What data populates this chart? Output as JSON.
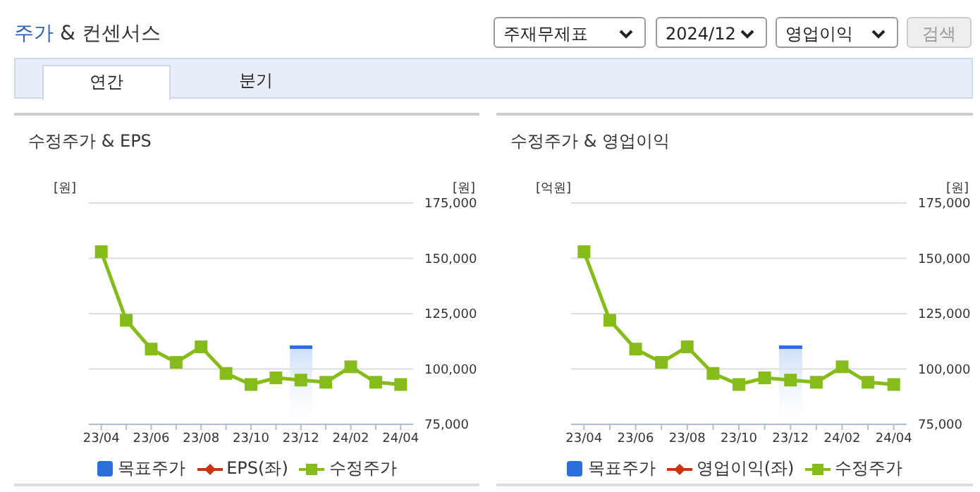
{
  "chart_data": [
    {
      "type": "other",
      "title": "주가 & 컨센서스",
      "annotations": [
        "주재무제표",
        "2024/12",
        "영업이익",
        "검색",
        "연간",
        "분기"
      ]
    },
    {
      "type": "line",
      "title": "수정주가 & EPS",
      "ylabel": "[원]",
      "y2label": "[원]",
      "categories": [
        "23/04",
        null,
        "23/06",
        null,
        "23/08",
        null,
        "23/10",
        null,
        "23/12",
        null,
        "24/02",
        null,
        "24/04"
      ],
      "y2lim": [
        75000,
        175000
      ],
      "y2ticks": [
        {
          "value": 75000,
          "label": "75,000"
        },
        {
          "value": 100000,
          "label": "100,000"
        },
        {
          "value": 125000,
          "label": "125,000"
        },
        {
          "value": 150000,
          "label": "150,000"
        },
        {
          "value": 175000,
          "label": "175,000"
        }
      ],
      "grid": "y",
      "legend": "bottom",
      "series": [
        {
          "type": "bar",
          "name": "목표주가",
          "color": "#2a6fdb",
          "axis": "y2",
          "values": [
            null,
            null,
            null,
            null,
            null,
            null,
            null,
            null,
            110000,
            null,
            null,
            null,
            null
          ]
        },
        {
          "name": "EPS(좌)",
          "color": "#cc3311",
          "marker": "diamond",
          "values": [
            null,
            null,
            null,
            null,
            null,
            null,
            null,
            null,
            null,
            null,
            null,
            null,
            null
          ]
        },
        {
          "name": "수정주가",
          "color": "#86bc1a",
          "axis": "y2",
          "marker": "square",
          "values": [
            153000,
            122000,
            109000,
            103000,
            110000,
            98000,
            93000,
            96000,
            95000,
            94000,
            101000,
            94000,
            93000
          ]
        }
      ]
    },
    {
      "type": "line",
      "title": "수정주가 & 영업이익",
      "ylabel": "[억원]",
      "y2label": "[원]",
      "categories": [
        "23/04",
        null,
        "23/06",
        null,
        "23/08",
        null,
        "23/10",
        null,
        "23/12",
        null,
        "24/02",
        null,
        "24/04"
      ],
      "y2lim": [
        75000,
        175000
      ],
      "y2ticks": [
        {
          "value": 75000,
          "label": "75,000"
        },
        {
          "value": 100000,
          "label": "100,000"
        },
        {
          "value": 125000,
          "label": "125,000"
        },
        {
          "value": 150000,
          "label": "150,000"
        },
        {
          "value": 175000,
          "label": "175,000"
        }
      ],
      "grid": "y",
      "legend": "bottom",
      "series": [
        {
          "type": "bar",
          "name": "목표주가",
          "color": "#2a6fdb",
          "axis": "y2",
          "values": [
            null,
            null,
            null,
            null,
            null,
            null,
            null,
            null,
            110000,
            null,
            null,
            null,
            null
          ]
        },
        {
          "name": "영업이익(좌)",
          "color": "#cc3311",
          "marker": "diamond",
          "values": [
            null,
            null,
            null,
            null,
            null,
            null,
            null,
            null,
            null,
            null,
            null,
            null,
            null
          ]
        },
        {
          "name": "수정주가",
          "color": "#86bc1a",
          "axis": "y2",
          "marker": "square",
          "values": [
            153000,
            122000,
            109000,
            103000,
            110000,
            98000,
            93000,
            96000,
            95000,
            94000,
            101000,
            94000,
            93000
          ]
        }
      ]
    }
  ]
}
